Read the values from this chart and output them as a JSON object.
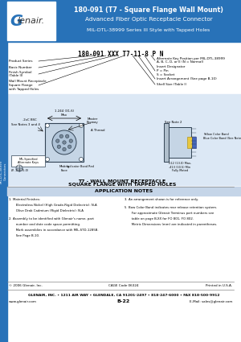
{
  "title_line1": "180-091 (T7 - Square Flange Wall Mount)",
  "title_line2": "Advanced Fiber Optic Receptacle Connector",
  "title_line3": "MIL-DTL-38999 Series III Style with Tapped Holes",
  "header_bg": "#2872b8",
  "sidebar_bg": "#2872b8",
  "header_text_color": "#ffffff",
  "part_number": "180-091 XXX T7-11-8 P N",
  "section_title_line1": "T7 - WALL MOUNT RECEPTACLE",
  "section_title_line2": "SQUARE FLANGE WITH TAPPED HOLES",
  "app_notes_title": "APPLICATION NOTES",
  "footer_line1": "GLENAIR, INC. • 1211 AIR WAY • GLENDALE, CA 91201-2497 • 818-247-6000 • FAX 818-500-9912",
  "footer_url": "www.glenair.com",
  "footer_page": "B-22",
  "footer_email": "E-Mail: sales@glenair.com",
  "footer_copyright": "© 2006 Glenair, Inc.",
  "cage_code": "CAGE Code 06324",
  "printed": "Printed in U.S.A.",
  "bg_color": "#ffffff",
  "diagram_bg": "#dce8f5",
  "connector_gray": "#8899aa",
  "connector_dark": "#445566"
}
